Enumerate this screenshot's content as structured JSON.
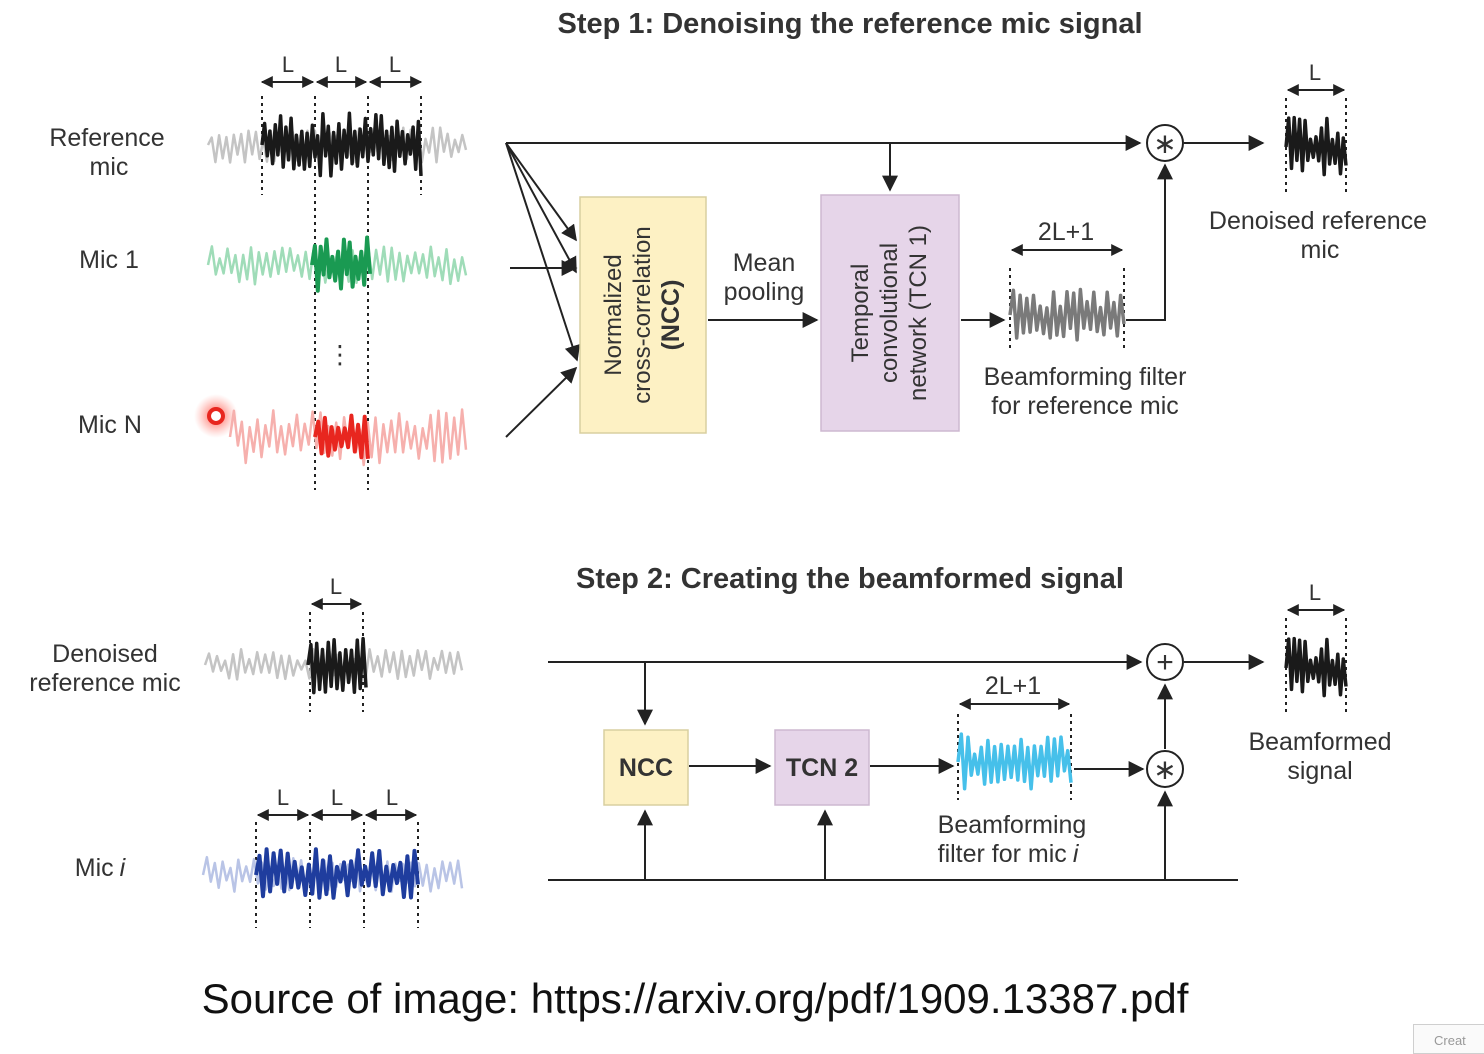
{
  "step1": {
    "title": "Step 1: Denoising the reference mic signal",
    "mic_labels": [
      [
        "Reference",
        "mic"
      ],
      [
        "Mic 1"
      ],
      [
        "Mic N"
      ]
    ],
    "ellipsis": "⋮",
    "window_label": "L",
    "ncc_box": [
      "Normalized",
      "cross-correlation",
      "(NCC)"
    ],
    "mean_pooling": [
      "Mean",
      "pooling"
    ],
    "tcn_box": [
      "Temporal",
      "convolutional",
      "network (TCN 1)"
    ],
    "filter_width": "2L+1",
    "filter_caption": [
      "Beamforming filter",
      "for reference mic"
    ],
    "output_width": "L",
    "output_caption": [
      "Denoised reference",
      "mic"
    ],
    "operator": "∗"
  },
  "step2": {
    "title": "Step 2: Creating the beamformed signal",
    "mic_labels": [
      [
        "Denoised",
        "reference mic"
      ],
      [
        "Mic",
        "i"
      ]
    ],
    "window_label": "L",
    "ncc_box": "NCC",
    "tcn_box": "TCN 2",
    "filter_width": "2L+1",
    "filter_caption": [
      "Beamforming",
      "filter for mic",
      "i"
    ],
    "output_width": "L",
    "output_caption": [
      "Beamformed",
      "signal"
    ],
    "plus_operator": "+",
    "mult_operator": "∗"
  },
  "source_text": "Source of image: https://arxiv.org/pdf/1909.13387.pdf",
  "corner_text": "Creat",
  "colors": {
    "ncc_fill": "#fdf1c4",
    "tcn_fill": "#e6d5e9",
    "ref_wave": "#1a1a1a",
    "mic1_wave": "#1a9a52",
    "mic1_faint": "#9fdcb8",
    "micN_wave": "#e8261f",
    "micN_faint": "#f6b0ad",
    "mici_wave": "#1f3d9e",
    "mici_faint": "#b9c4e6",
    "filter1_wave": "#7a7a7a",
    "filter2_wave": "#46c0ea",
    "faint_gray": "#c4c4c4",
    "line": "#222222"
  }
}
